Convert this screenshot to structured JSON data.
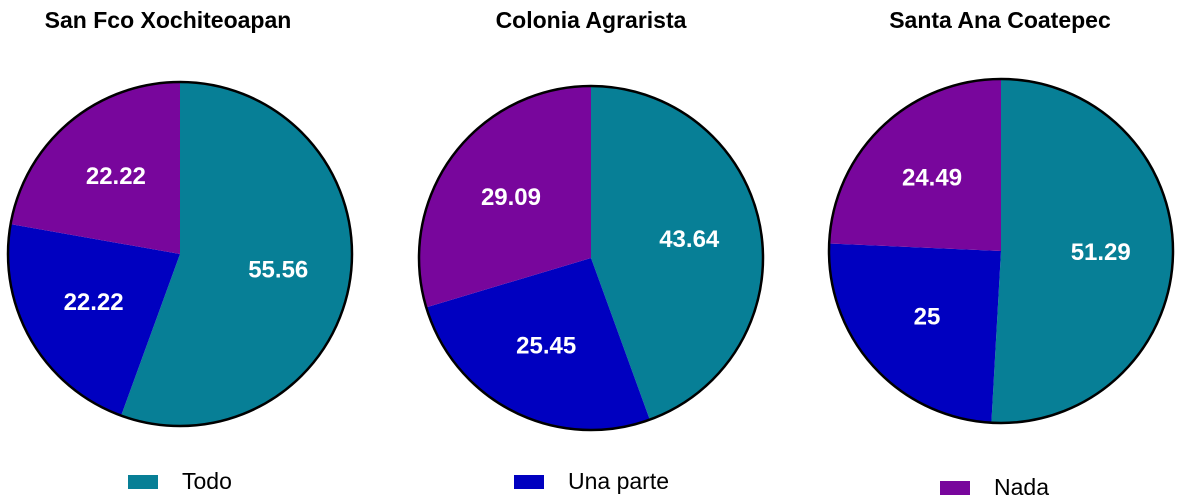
{
  "chart_data": [
    {
      "type": "pie",
      "title": "San Fco Xochiteoapan",
      "values": [
        55.56,
        22.22,
        22.22
      ]
    },
    {
      "type": "pie",
      "title": "Colonia Agrarista",
      "values": [
        43.64,
        25.45,
        29.09
      ]
    },
    {
      "type": "pie",
      "title": "Santa Ana Coatepec",
      "values": [
        51.29,
        25,
        24.49
      ]
    }
  ],
  "legend": {
    "categories": [
      "Todo",
      "Una parte",
      "Nada"
    ],
    "colors": [
      "#077f96",
      "#0000c0",
      "#78069c"
    ]
  }
}
